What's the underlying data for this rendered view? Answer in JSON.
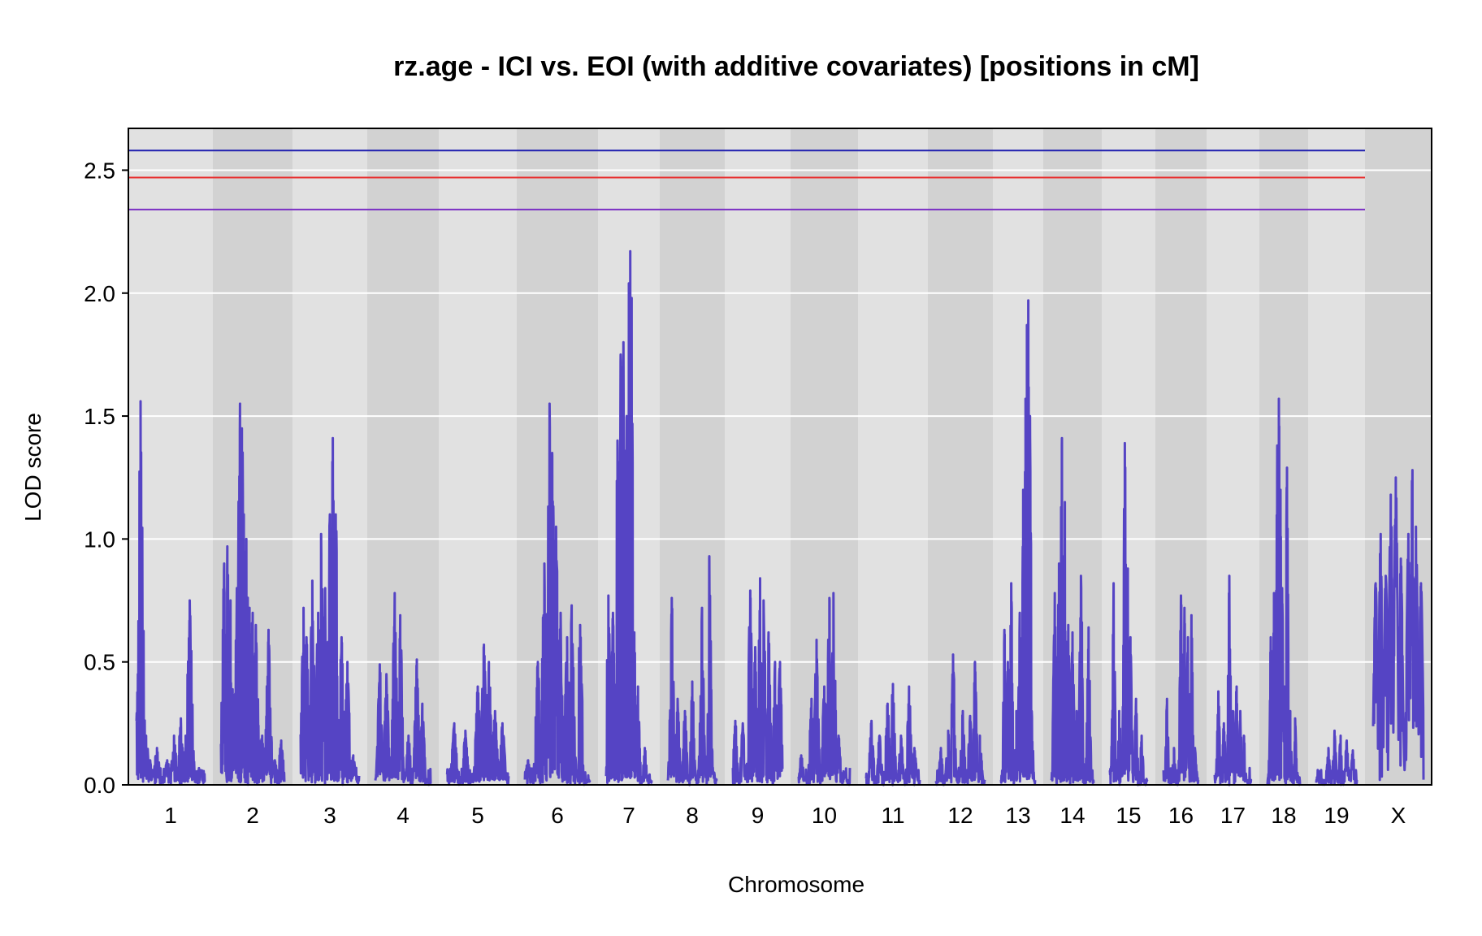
{
  "chart_data": {
    "type": "line",
    "title": "rz.age - ICI vs. EOI (with additive covariates) [positions in cM]",
    "xlabel": "Chromosome",
    "ylabel": "LOD score",
    "ylim": [
      0,
      2.67
    ],
    "yticks": [
      "0.0",
      "0.5",
      "1.0",
      "1.5",
      "2.0",
      "2.5"
    ],
    "ytick_values": [
      0,
      0.5,
      1.0,
      1.5,
      2.0,
      2.5
    ],
    "grid": true,
    "line_color": "#5544c4",
    "thresholds": [
      {
        "value": 2.58,
        "color": "#2020b0"
      },
      {
        "value": 2.47,
        "color": "#e83030"
      },
      {
        "value": 2.34,
        "color": "#7a2fc4"
      }
    ],
    "chromosomes": [
      {
        "label": "1",
        "peaks": [
          [
            0.05,
            0.4
          ],
          [
            0.06,
            1.56
          ],
          [
            0.08,
            0.9
          ],
          [
            0.1,
            0.6
          ],
          [
            0.14,
            0.2
          ],
          [
            0.2,
            0.1
          ],
          [
            0.3,
            0.15
          ],
          [
            0.45,
            0.1
          ],
          [
            0.55,
            0.2
          ],
          [
            0.65,
            0.27
          ],
          [
            0.72,
            0.2
          ],
          [
            0.78,
            0.75
          ],
          [
            0.85,
            0.05
          ],
          [
            0.95,
            0.05
          ]
        ]
      },
      {
        "label": "2",
        "peaks": [
          [
            0.05,
            0.9
          ],
          [
            0.1,
            0.97
          ],
          [
            0.15,
            0.75
          ],
          [
            0.25,
            0.8
          ],
          [
            0.3,
            1.55
          ],
          [
            0.33,
            1.45
          ],
          [
            0.36,
            1.1
          ],
          [
            0.4,
            1.0
          ],
          [
            0.45,
            0.72
          ],
          [
            0.5,
            0.7
          ],
          [
            0.55,
            0.65
          ],
          [
            0.65,
            0.2
          ],
          [
            0.75,
            0.63
          ],
          [
            0.85,
            0.1
          ],
          [
            0.95,
            0.18
          ]
        ]
      },
      {
        "label": "3",
        "peaks": [
          [
            0.05,
            0.72
          ],
          [
            0.1,
            0.6
          ],
          [
            0.2,
            0.83
          ],
          [
            0.3,
            0.7
          ],
          [
            0.35,
            1.02
          ],
          [
            0.42,
            0.8
          ],
          [
            0.5,
            1.1
          ],
          [
            0.55,
            1.41
          ],
          [
            0.6,
            1.1
          ],
          [
            0.7,
            0.6
          ],
          [
            0.8,
            0.5
          ],
          [
            0.9,
            0.12
          ]
        ]
      },
      {
        "label": "4",
        "peaks": [
          [
            0.08,
            0.49
          ],
          [
            0.2,
            0.45
          ],
          [
            0.35,
            0.78
          ],
          [
            0.45,
            0.69
          ],
          [
            0.6,
            0.2
          ],
          [
            0.75,
            0.51
          ],
          [
            0.85,
            0.33
          ]
        ]
      },
      {
        "label": "5",
        "peaks": [
          [
            0.05,
            0.05
          ],
          [
            0.12,
            0.25
          ],
          [
            0.3,
            0.22
          ],
          [
            0.5,
            0.4
          ],
          [
            0.6,
            0.57
          ],
          [
            0.68,
            0.5
          ],
          [
            0.78,
            0.3
          ],
          [
            0.9,
            0.25
          ]
        ]
      },
      {
        "label": "6",
        "peaks": [
          [
            0.05,
            0.1
          ],
          [
            0.2,
            0.5
          ],
          [
            0.3,
            0.9
          ],
          [
            0.38,
            1.55
          ],
          [
            0.42,
            1.35
          ],
          [
            0.48,
            1.05
          ],
          [
            0.55,
            0.7
          ],
          [
            0.65,
            0.6
          ],
          [
            0.72,
            0.73
          ],
          [
            0.85,
            0.65
          ]
        ]
      },
      {
        "label": "7",
        "peaks": [
          [
            0.05,
            0.77
          ],
          [
            0.15,
            0.7
          ],
          [
            0.25,
            1.4
          ],
          [
            0.32,
            1.75
          ],
          [
            0.38,
            1.8
          ],
          [
            0.45,
            1.5
          ],
          [
            0.5,
            2.04
          ],
          [
            0.53,
            2.17
          ],
          [
            0.56,
            1.98
          ],
          [
            0.62,
            0.62
          ],
          [
            0.7,
            0.4
          ],
          [
            0.85,
            0.15
          ]
        ]
      },
      {
        "label": "8",
        "peaks": [
          [
            0.08,
            0.76
          ],
          [
            0.2,
            0.35
          ],
          [
            0.35,
            0.3
          ],
          [
            0.5,
            0.42
          ],
          [
            0.7,
            0.72
          ],
          [
            0.85,
            0.93
          ],
          [
            0.95,
            0.05
          ]
        ]
      },
      {
        "label": "9",
        "peaks": [
          [
            0.05,
            0.26
          ],
          [
            0.2,
            0.25
          ],
          [
            0.35,
            0.79
          ],
          [
            0.45,
            0.56
          ],
          [
            0.55,
            0.84
          ],
          [
            0.62,
            0.75
          ],
          [
            0.72,
            0.62
          ],
          [
            0.85,
            0.5
          ],
          [
            0.95,
            0.5
          ]
        ]
      },
      {
        "label": "10",
        "peaks": [
          [
            0.05,
            0.12
          ],
          [
            0.25,
            0.35
          ],
          [
            0.35,
            0.59
          ],
          [
            0.5,
            0.4
          ],
          [
            0.6,
            0.76
          ],
          [
            0.68,
            0.78
          ],
          [
            0.78,
            0.2
          ],
          [
            0.9,
            0.05
          ]
        ]
      },
      {
        "label": "11",
        "peaks": [
          [
            0.1,
            0.26
          ],
          [
            0.25,
            0.2
          ],
          [
            0.4,
            0.33
          ],
          [
            0.5,
            0.41
          ],
          [
            0.65,
            0.2
          ],
          [
            0.8,
            0.4
          ],
          [
            0.9,
            0.15
          ]
        ]
      },
      {
        "label": "12",
        "peaks": [
          [
            0.1,
            0.15
          ],
          [
            0.25,
            0.22
          ],
          [
            0.35,
            0.53
          ],
          [
            0.55,
            0.3
          ],
          [
            0.7,
            0.28
          ],
          [
            0.8,
            0.5
          ],
          [
            0.9,
            0.2
          ]
        ]
      },
      {
        "label": "13",
        "peaks": [
          [
            0.1,
            0.63
          ],
          [
            0.2,
            0.5
          ],
          [
            0.3,
            0.82
          ],
          [
            0.45,
            0.3
          ],
          [
            0.55,
            0.7
          ],
          [
            0.65,
            1.2
          ],
          [
            0.72,
            1.57
          ],
          [
            0.76,
            1.87
          ],
          [
            0.8,
            1.97
          ],
          [
            0.85,
            1.5
          ],
          [
            0.9,
            0.3
          ]
        ]
      },
      {
        "label": "14",
        "peaks": [
          [
            0.08,
            0.78
          ],
          [
            0.18,
            0.9
          ],
          [
            0.25,
            1.41
          ],
          [
            0.32,
            1.15
          ],
          [
            0.4,
            0.65
          ],
          [
            0.5,
            0.62
          ],
          [
            0.6,
            0.3
          ],
          [
            0.7,
            0.85
          ],
          [
            0.88,
            0.64
          ]
        ]
      },
      {
        "label": "15",
        "peaks": [
          [
            0.1,
            0.82
          ],
          [
            0.25,
            0.3
          ],
          [
            0.4,
            1.39
          ],
          [
            0.48,
            0.88
          ],
          [
            0.55,
            0.6
          ],
          [
            0.7,
            0.35
          ],
          [
            0.85,
            0.2
          ]
        ]
      },
      {
        "label": "16",
        "peaks": [
          [
            0.1,
            0.35
          ],
          [
            0.3,
            0.15
          ],
          [
            0.5,
            0.77
          ],
          [
            0.6,
            0.72
          ],
          [
            0.7,
            0.6
          ],
          [
            0.8,
            0.69
          ],
          [
            0.9,
            0.15
          ]
        ]
      },
      {
        "label": "17",
        "peaks": [
          [
            0.1,
            0.38
          ],
          [
            0.25,
            0.25
          ],
          [
            0.4,
            0.85
          ],
          [
            0.5,
            0.3
          ],
          [
            0.6,
            0.4
          ],
          [
            0.7,
            0.3
          ],
          [
            0.8,
            0.2
          ]
        ]
      },
      {
        "label": "18",
        "peaks": [
          [
            0.1,
            0.6
          ],
          [
            0.2,
            0.78
          ],
          [
            0.3,
            1.38
          ],
          [
            0.35,
            1.57
          ],
          [
            0.4,
            1.2
          ],
          [
            0.45,
            0.8
          ],
          [
            0.52,
            0.4
          ],
          [
            0.6,
            1.29
          ],
          [
            0.7,
            0.3
          ],
          [
            0.85,
            0.27
          ]
        ]
      },
      {
        "label": "19",
        "peaks": [
          [
            0.1,
            0.05
          ],
          [
            0.3,
            0.15
          ],
          [
            0.45,
            0.22
          ],
          [
            0.6,
            0.2
          ],
          [
            0.75,
            0.18
          ],
          [
            0.9,
            0.14
          ]
        ]
      },
      {
        "label": "X",
        "peaks": [
          [
            0.05,
            0.82
          ],
          [
            0.15,
            1.02
          ],
          [
            0.25,
            0.85
          ],
          [
            0.35,
            1.18
          ],
          [
            0.45,
            1.25
          ],
          [
            0.55,
            0.92
          ],
          [
            0.7,
            1.02
          ],
          [
            0.78,
            1.28
          ],
          [
            0.85,
            1.05
          ],
          [
            0.95,
            0.82
          ]
        ]
      }
    ]
  }
}
